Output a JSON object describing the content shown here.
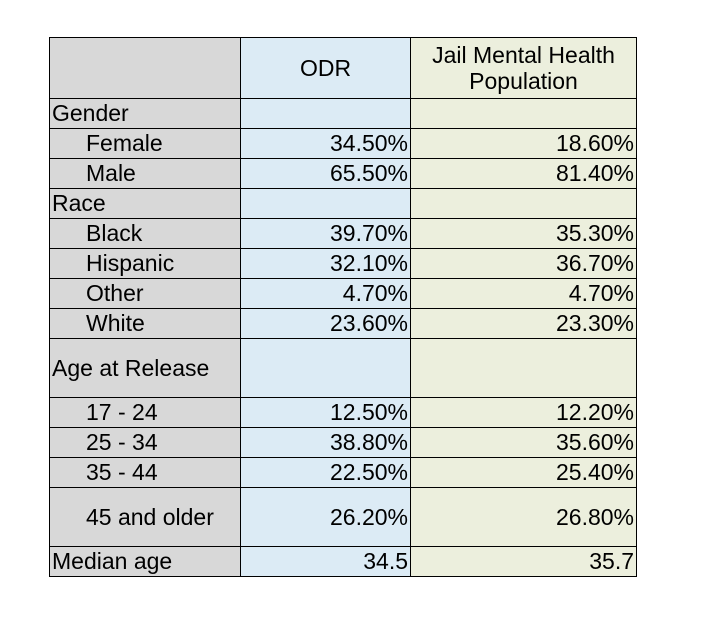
{
  "header": {
    "odr": "ODR",
    "jail_line1": "Jail Mental Health",
    "jail_line2": "Population"
  },
  "rows": [
    {
      "label": "Gender",
      "odr": "",
      "jail": ""
    },
    {
      "label": "Female",
      "odr": "34.50%",
      "jail": "18.60%"
    },
    {
      "label": "Male",
      "odr": "65.50%",
      "jail": "81.40%"
    },
    {
      "label": "Race",
      "odr": "",
      "jail": ""
    },
    {
      "label": "Black",
      "odr": "39.70%",
      "jail": "35.30%"
    },
    {
      "label": "Hispanic",
      "odr": "32.10%",
      "jail": "36.70%"
    },
    {
      "label": "Other",
      "odr": "4.70%",
      "jail": "4.70%"
    },
    {
      "label": "White",
      "odr": "23.60%",
      "jail": "23.30%"
    },
    {
      "label": "Age at Release",
      "odr": "",
      "jail": ""
    },
    {
      "label": "17 - 24",
      "odr": "12.50%",
      "jail": "12.20%"
    },
    {
      "label": "25 - 34",
      "odr": "38.80%",
      "jail": "35.60%"
    },
    {
      "label": "35 - 44",
      "odr": "22.50%",
      "jail": "25.40%"
    },
    {
      "label": "45 and older",
      "odr": "26.20%",
      "jail": "26.80%"
    },
    {
      "label": "Median age",
      "odr": "34.5",
      "jail": "35.7"
    }
  ]
}
